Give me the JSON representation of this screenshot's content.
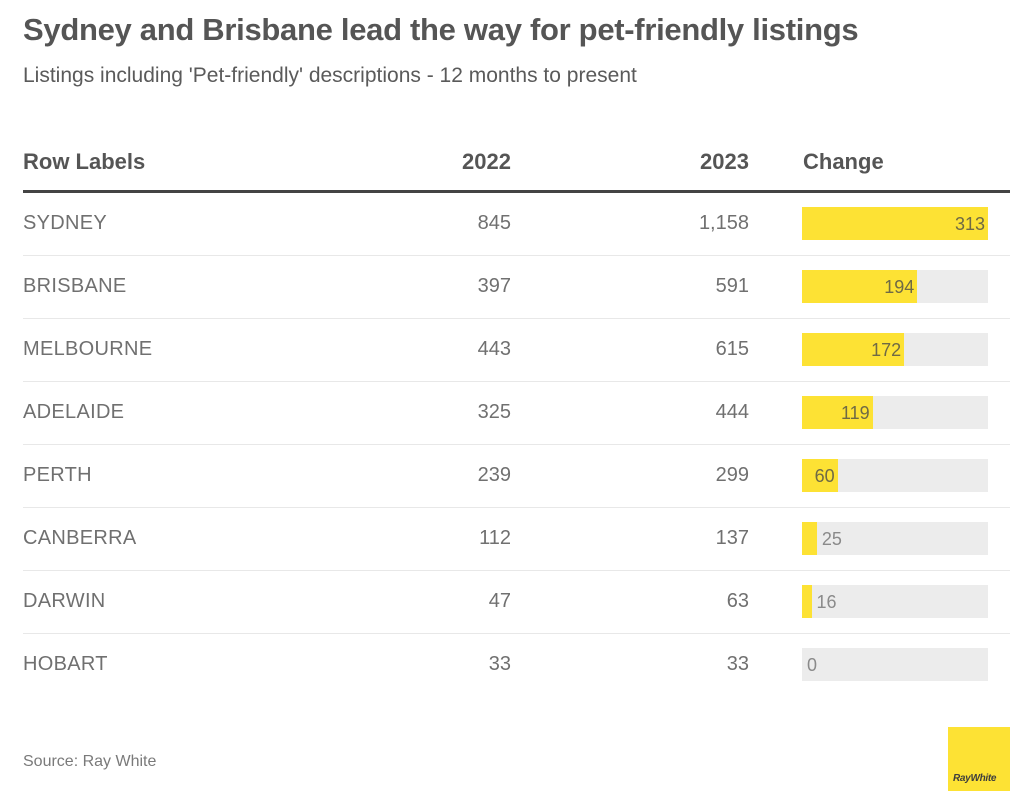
{
  "header": {
    "title": "Sydney and Brisbane lead the way for pet-friendly listings",
    "subtitle": "Listings including 'Pet-friendly' descriptions - 12 months to present"
  },
  "table": {
    "columns": [
      "Row Labels",
      "2022",
      "2023",
      "Change"
    ],
    "rows": [
      {
        "label": "SYDNEY",
        "y2022": "845",
        "y2023": "1,158",
        "change": "313"
      },
      {
        "label": "BRISBANE",
        "y2022": "397",
        "y2023": "591",
        "change": "194"
      },
      {
        "label": "MELBOURNE",
        "y2022": "443",
        "y2023": "615",
        "change": "172"
      },
      {
        "label": "ADELAIDE",
        "y2022": "325",
        "y2023": "444",
        "change": "119"
      },
      {
        "label": "PERTH",
        "y2022": "239",
        "y2023": "299",
        "change": "60"
      },
      {
        "label": "CANBERRA",
        "y2022": "112",
        "y2023": "137",
        "change": "25"
      },
      {
        "label": "DARWIN",
        "y2022": "47",
        "y2023": "63",
        "change": "16"
      },
      {
        "label": "HOBART",
        "y2022": "33",
        "y2023": "33",
        "change": "0"
      }
    ]
  },
  "chart_data": {
    "type": "table",
    "title": "Sydney and Brisbane lead the way for pet-friendly listings",
    "subtitle": "Listings including 'Pet-friendly' descriptions - 12 months to present",
    "columns": [
      "Row Labels",
      "2022",
      "2023",
      "Change"
    ],
    "categories": [
      "SYDNEY",
      "BRISBANE",
      "MELBOURNE",
      "ADELAIDE",
      "PERTH",
      "CANBERRA",
      "DARWIN",
      "HOBART"
    ],
    "series": [
      {
        "name": "2022",
        "values": [
          845,
          397,
          443,
          325,
          239,
          112,
          47,
          33
        ]
      },
      {
        "name": "2023",
        "values": [
          1158,
          591,
          615,
          444,
          299,
          137,
          63,
          33
        ]
      },
      {
        "name": "Change",
        "values": [
          313,
          194,
          172,
          119,
          60,
          25,
          16,
          0
        ],
        "display": "data-bar"
      }
    ],
    "bar_max": 313,
    "source": "Source: Ray White"
  },
  "colors": {
    "bar_fill": "#fde234",
    "bar_track": "#ececec",
    "header_rule": "#444444"
  },
  "footer": {
    "source": "Source: Ray White",
    "logo_text": "RayWhite"
  }
}
